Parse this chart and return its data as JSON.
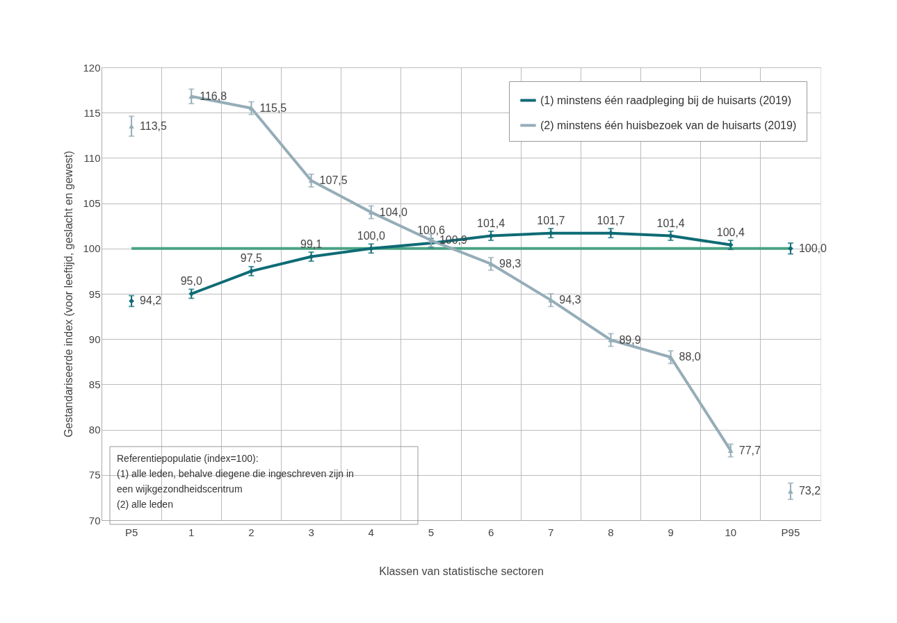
{
  "chart_data": {
    "type": "line",
    "xlabel": "Klassen van statistische sectoren",
    "ylabel": "Gestandariseerde index (voor leeftijd, geslacht en gewest)",
    "categories": [
      "P5",
      "1",
      "2",
      "3",
      "4",
      "5",
      "6",
      "7",
      "8",
      "9",
      "10",
      "P95"
    ],
    "ylim": [
      70,
      120
    ],
    "yticks": [
      70,
      75,
      80,
      85,
      90,
      95,
      100,
      105,
      110,
      115,
      120
    ],
    "grid": true,
    "legend": "top right",
    "series": [
      {
        "name": "(1) minstens één raadpleging bij de huisarts (2019)",
        "color": "#0e6b75",
        "marker": "diamond",
        "values": [
          null,
          95.0,
          97.5,
          99.1,
          100.0,
          100.6,
          101.4,
          101.7,
          101.7,
          101.4,
          100.4,
          null
        ],
        "errors": [
          null,
          0.5,
          0.5,
          0.5,
          0.5,
          0.5,
          0.5,
          0.5,
          0.5,
          0.5,
          0.5,
          null
        ],
        "value_labels": [
          null,
          "95,0",
          "97,5",
          "99,1",
          "100,0",
          "100,6",
          "101,4",
          "101,7",
          "101,7",
          "101,4",
          "100,4",
          null
        ]
      },
      {
        "type": "scatter",
        "color": "#0e6b75",
        "marker": "diamond",
        "values": [
          94.2,
          null,
          null,
          null,
          null,
          null,
          null,
          null,
          null,
          null,
          null,
          100.0
        ],
        "errors": [
          0.6,
          null,
          null,
          null,
          null,
          null,
          null,
          null,
          null,
          null,
          null,
          0.6
        ],
        "value_labels": [
          "94,2",
          null,
          null,
          null,
          null,
          null,
          null,
          null,
          null,
          null,
          null,
          "100,0"
        ]
      },
      {
        "name": "(2) minstens één huisbezoek van de huisarts (2019)",
        "color": "#95adb8",
        "marker": "triangle",
        "values": [
          null,
          116.8,
          115.5,
          107.5,
          104.0,
          100.9,
          98.3,
          94.3,
          89.9,
          88.0,
          77.7,
          null
        ],
        "errors": [
          null,
          0.8,
          0.7,
          0.7,
          0.7,
          0.7,
          0.7,
          0.7,
          0.7,
          0.7,
          0.7,
          null
        ],
        "value_labels": [
          null,
          "116,8",
          "115,5",
          "107,5",
          "104,0",
          "100,9",
          "98,3",
          "94,3",
          "89,9",
          "88,0",
          "77,7",
          null
        ]
      },
      {
        "type": "scatter",
        "color": "#95adb8",
        "marker": "triangle",
        "values": [
          113.5,
          null,
          null,
          null,
          null,
          null,
          null,
          null,
          null,
          null,
          null,
          73.2
        ],
        "errors": [
          1.1,
          null,
          null,
          null,
          null,
          null,
          null,
          null,
          null,
          null,
          null,
          0.9
        ],
        "value_labels": [
          "113,5",
          null,
          null,
          null,
          null,
          null,
          null,
          null,
          null,
          null,
          null,
          "73,2"
        ]
      }
    ],
    "ref_lines": [
      {
        "axis": "y",
        "value": 100,
        "color": "#4aa383"
      }
    ],
    "annotations": [
      "Referentiepopulatie (index=100):",
      "(1) alle leden, behalve diegene die ingeschreven zijn in",
      "een wijkgezondheidscentrum",
      "(2) alle leden"
    ]
  }
}
